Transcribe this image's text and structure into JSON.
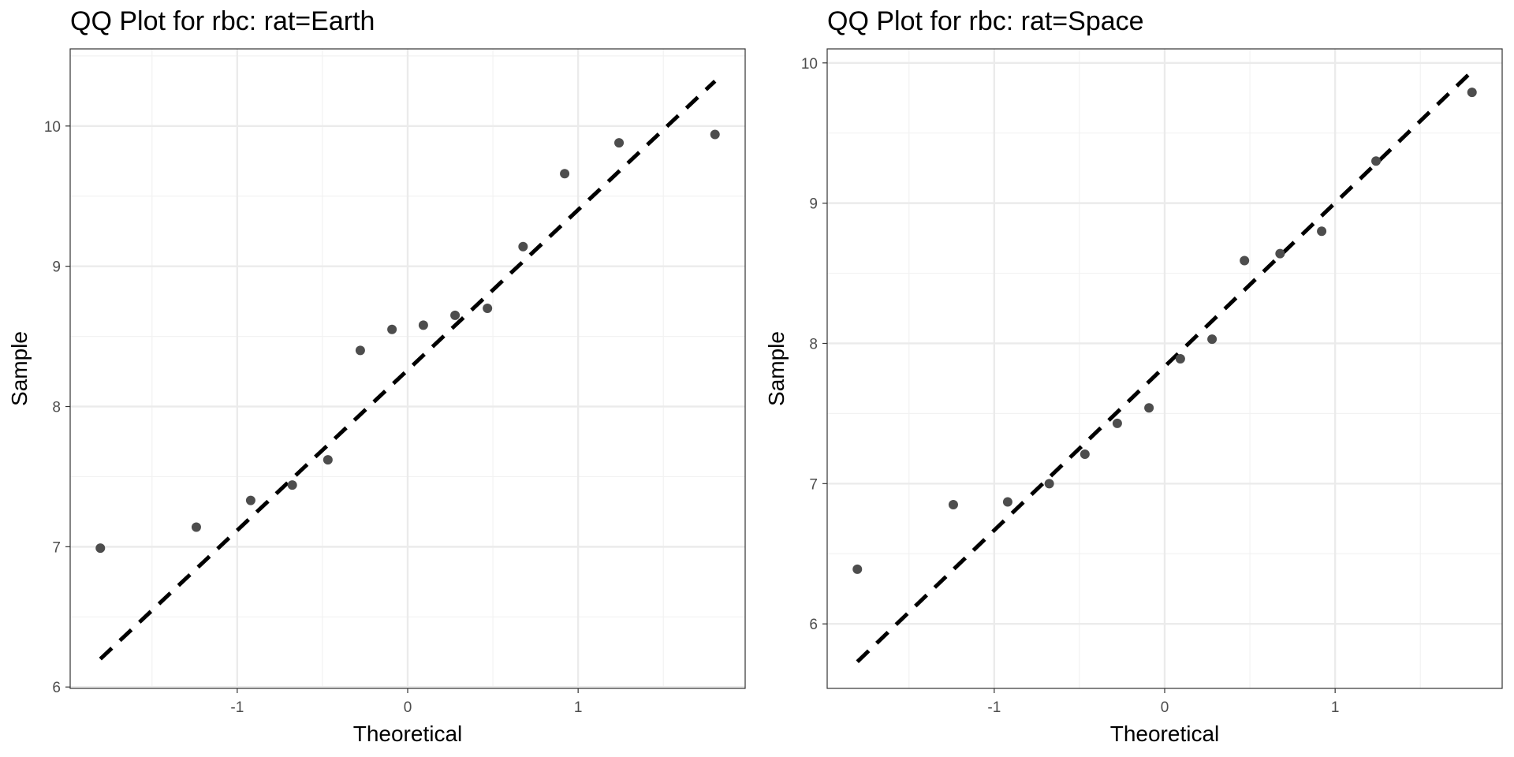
{
  "chart_data": [
    {
      "type": "scatter",
      "title": "QQ Plot for rbc: rat=Earth",
      "xlabel": "Theoretical",
      "ylabel": "Sample",
      "xlim": [
        -1.98,
        1.98
      ],
      "ylim": [
        5.99,
        10.55
      ],
      "xticks": [
        -1,
        0,
        1
      ],
      "xtick_labels": [
        "-1",
        "0",
        "1"
      ],
      "yticks": [
        6,
        7,
        8,
        9,
        10
      ],
      "ytick_labels": [
        "6",
        "7",
        "8",
        "9",
        "10"
      ],
      "grid": true,
      "point_color": "#4d4d4d",
      "points": {
        "x": [
          -1.803,
          -1.24,
          -0.921,
          -0.677,
          -0.468,
          -0.278,
          -0.092,
          0.092,
          0.278,
          0.468,
          0.677,
          0.921,
          1.24,
          1.803
        ],
        "y": [
          6.99,
          7.14,
          7.33,
          7.44,
          7.62,
          8.4,
          8.55,
          8.58,
          8.65,
          8.7,
          9.14,
          9.66,
          9.88,
          9.94
        ]
      },
      "reference_line": {
        "x": [
          -1.803,
          1.803
        ],
        "y": [
          6.2,
          10.32
        ],
        "style": "dashed",
        "color": "#000000"
      }
    },
    {
      "type": "scatter",
      "title": "QQ Plot for rbc: rat=Space",
      "xlabel": "Theoretical",
      "ylabel": "Sample",
      "xlim": [
        -1.98,
        1.98
      ],
      "ylim": [
        5.54,
        10.1
      ],
      "xticks": [
        -1,
        0,
        1
      ],
      "xtick_labels": [
        "-1",
        "0",
        "1"
      ],
      "yticks": [
        6,
        7,
        8,
        9,
        10
      ],
      "ytick_labels": [
        "6",
        "7",
        "8",
        "9",
        "10"
      ],
      "grid": true,
      "point_color": "#4d4d4d",
      "points": {
        "x": [
          -1.803,
          -1.24,
          -0.921,
          -0.677,
          -0.468,
          -0.278,
          -0.092,
          0.092,
          0.278,
          0.468,
          0.677,
          0.921,
          1.24,
          1.803
        ],
        "y": [
          6.39,
          6.85,
          6.87,
          7.0,
          7.21,
          7.43,
          7.54,
          7.89,
          8.03,
          8.59,
          8.64,
          8.8,
          9.3,
          9.79
        ]
      },
      "reference_line": {
        "x": [
          -1.803,
          1.803
        ],
        "y": [
          5.73,
          9.94
        ],
        "style": "dashed",
        "color": "#000000"
      }
    }
  ]
}
